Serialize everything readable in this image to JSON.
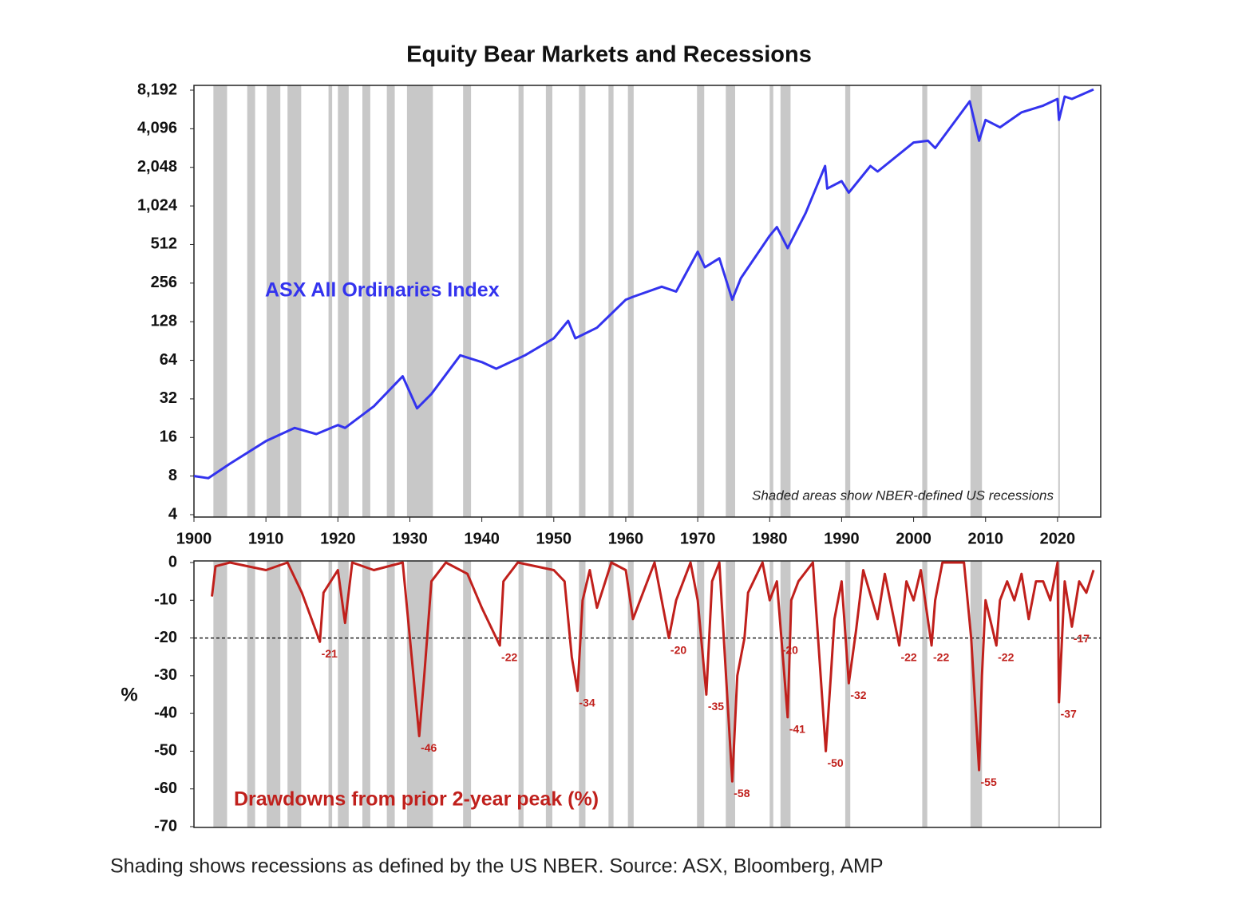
{
  "title": "Equity Bear Markets and Recessions",
  "caption": "Shading shows recessions as defined by the US NBER. Source: ASX, Bloomberg, AMP",
  "recessions": [
    [
      1902.7,
      1904.6
    ],
    [
      1907.4,
      1908.5
    ],
    [
      1910.1,
      1912.0
    ],
    [
      1913.0,
      1914.9
    ],
    [
      1918.7,
      1919.2
    ],
    [
      1920.0,
      1921.5
    ],
    [
      1923.4,
      1924.5
    ],
    [
      1926.8,
      1927.9
    ],
    [
      1929.6,
      1933.2
    ],
    [
      1937.4,
      1938.5
    ],
    [
      1945.1,
      1945.8
    ],
    [
      1948.9,
      1949.8
    ],
    [
      1953.5,
      1954.4
    ],
    [
      1957.6,
      1958.3
    ],
    [
      1960.3,
      1961.1
    ],
    [
      1969.9,
      1970.9
    ],
    [
      1973.9,
      1975.2
    ],
    [
      1980.0,
      1980.5
    ],
    [
      1981.5,
      1982.9
    ],
    [
      1990.5,
      1991.2
    ],
    [
      2001.2,
      2001.9
    ],
    [
      2007.9,
      2009.5
    ],
    [
      2020.1,
      2020.3
    ]
  ],
  "chart_data": [
    {
      "type": "line",
      "log_base": 2,
      "annotation": "Shaded areas show NBER-defined US recessions",
      "xlim": [
        1900,
        2026
      ],
      "xticks": [
        1900,
        1910,
        1920,
        1930,
        1940,
        1950,
        1960,
        1970,
        1980,
        1990,
        2000,
        2010,
        2020
      ],
      "ylim": [
        4,
        8192
      ],
      "yticks": [
        4,
        8,
        16,
        32,
        64,
        128,
        256,
        512,
        {
          "value": 1024,
          "label": "1,024"
        },
        {
          "value": 2048,
          "label": "2,048"
        },
        {
          "value": 4096,
          "label": "4,096"
        },
        {
          "value": 8192,
          "label": "8,192"
        }
      ],
      "series": [
        {
          "name": "ASX All Ordinaries Index",
          "color": "#3333ee",
          "x": [
            1900,
            1902,
            1905,
            1910,
            1914,
            1917,
            1920,
            1921,
            1925,
            1929,
            1931,
            1933,
            1937,
            1940,
            1942,
            1946,
            1950,
            1952,
            1953,
            1956,
            1960,
            1961,
            1965,
            1967,
            1970,
            1971,
            1973,
            1974.8,
            1976,
            1980,
            1981,
            1982.5,
            1985,
            1987.7,
            1988,
            1990,
            1991,
            1994,
            1995,
            2000,
            2002,
            2003,
            2007.8,
            2009.1,
            2010,
            2012,
            2015,
            2018,
            2020,
            2020.2,
            2021,
            2022,
            2025
          ],
          "values": [
            8,
            7.7,
            10,
            15,
            19,
            17,
            20,
            19,
            28,
            48,
            27,
            35,
            70,
            62,
            55,
            70,
            95,
            130,
            95,
            115,
            190,
            200,
            240,
            220,
            450,
            340,
            400,
            190,
            280,
            600,
            700,
            480,
            900,
            2100,
            1400,
            1600,
            1300,
            2100,
            1900,
            3200,
            3300,
            2900,
            6700,
            3300,
            4800,
            4200,
            5500,
            6200,
            7000,
            4800,
            7300,
            7000,
            8300
          ]
        }
      ]
    },
    {
      "type": "line",
      "ylabel": "%",
      "xlim": [
        1900,
        2026
      ],
      "ylim": [
        -70,
        0
      ],
      "yticks": [
        0,
        -10,
        -20,
        -30,
        -40,
        -50,
        -60,
        -70
      ],
      "reference_line": -20,
      "series": [
        {
          "name": "Drawdowns from prior 2-year peak (%)",
          "color": "#c0201c",
          "x": [
            1902.5,
            1903,
            1905,
            1910,
            1913,
            1915,
            1917.5,
            1918,
            1920,
            1921,
            1922,
            1925,
            1929,
            1930,
            1931.3,
            1932,
            1933,
            1935,
            1938,
            1940,
            1942.5,
            1943,
            1945,
            1950,
            1951.5,
            1952.5,
            1953.3,
            1954,
            1955,
            1956,
            1958,
            1960,
            1961,
            1963,
            1964,
            1966,
            1967,
            1969,
            1970,
            1971.2,
            1972,
            1973,
            1974.8,
            1975.5,
            1976.5,
            1977,
            1979,
            1980,
            1981,
            1982.5,
            1983,
            1984,
            1986,
            1987.8,
            1988.5,
            1989,
            1990,
            1991,
            1992,
            1993,
            1995,
            1996,
            1998,
            1999,
            2000,
            2001,
            2002.5,
            2003,
            2004,
            2007,
            2008,
            2009.1,
            2009.5,
            2010,
            2011.5,
            2012,
            2013,
            2014,
            2015,
            2016,
            2017,
            2018,
            2019,
            2020,
            2020.2,
            2021,
            2022,
            2023,
            2024,
            2025
          ],
          "values": [
            -9,
            -1,
            0,
            -2,
            0,
            -8,
            -21,
            -8,
            -2,
            -16,
            0,
            -2,
            0,
            -20,
            -46,
            -30,
            -5,
            0,
            -3,
            -12,
            -22,
            -5,
            0,
            -2,
            -5,
            -25,
            -34,
            -10,
            -2,
            -12,
            0,
            -2,
            -15,
            -5,
            0,
            -20,
            -10,
            0,
            -10,
            -35,
            -5,
            0,
            -58,
            -30,
            -20,
            -8,
            0,
            -10,
            -5,
            -41,
            -10,
            -5,
            0,
            -50,
            -30,
            -15,
            -5,
            -32,
            -18,
            -2,
            -15,
            -3,
            -22,
            -5,
            -10,
            -2,
            -22,
            -10,
            0,
            0,
            -20,
            -55,
            -30,
            -10,
            -22,
            -10,
            -5,
            -10,
            -3,
            -15,
            -5,
            -5,
            -10,
            0,
            -37,
            -5,
            -17,
            -5,
            -8,
            -2
          ]
        }
      ],
      "troughs": [
        {
          "x": 1917.5,
          "value": -21
        },
        {
          "x": 1931.3,
          "value": -46
        },
        {
          "x": 1942.5,
          "value": -22
        },
        {
          "x": 1953.3,
          "value": -34
        },
        {
          "x": 1966,
          "value": -20
        },
        {
          "x": 1971.2,
          "value": -35
        },
        {
          "x": 1974.8,
          "value": -58
        },
        {
          "x": 1981.5,
          "value": -20
        },
        {
          "x": 1982.5,
          "value": -41
        },
        {
          "x": 1987.8,
          "value": -50
        },
        {
          "x": 1991,
          "value": -32
        },
        {
          "x": 1998,
          "value": -22
        },
        {
          "x": 2002.5,
          "value": -22
        },
        {
          "x": 2009.1,
          "value": -55
        },
        {
          "x": 2011.5,
          "value": -22
        },
        {
          "x": 2020.2,
          "value": -37
        },
        {
          "x": 2022,
          "value": -17
        }
      ]
    }
  ]
}
